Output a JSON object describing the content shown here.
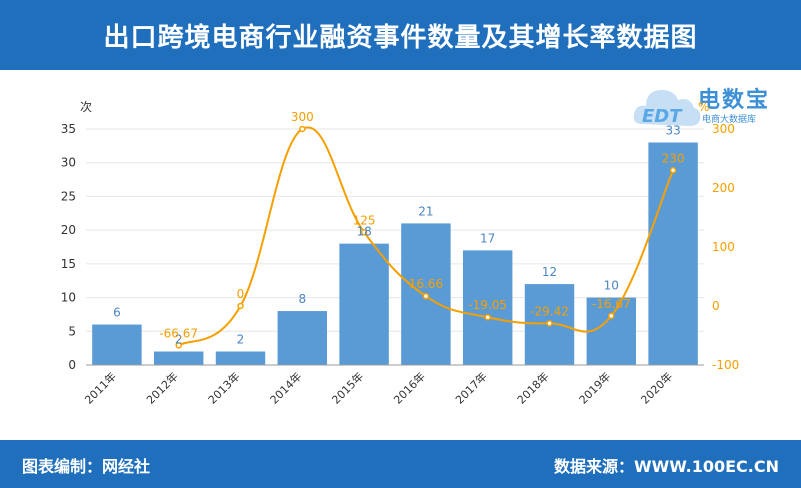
{
  "header": {
    "title": "出口跨境电商行业融资事件数量及其增长率数据图"
  },
  "footer": {
    "left": "图表编制：网经社",
    "right": "数据来源：WWW.100EC.CN"
  },
  "logo": {
    "main": "电数宝",
    "sub": "电商大数据库",
    "badge": "EDT",
    "icon": "cloud-logo-icon"
  },
  "colors": {
    "header": "#1f6fbd",
    "bar": "#5b9bd5",
    "line": "#f5a000",
    "barLabel": "#4a86c5"
  },
  "chart_data": {
    "type": "bar",
    "categories": [
      "2011年",
      "2012年",
      "2013年",
      "2014年",
      "2015年",
      "2016年",
      "2017年",
      "2018年",
      "2019年",
      "2020年"
    ],
    "series": [
      {
        "type": "bar",
        "axis": "left",
        "values": [
          6,
          2,
          2,
          8,
          18,
          21,
          17,
          12,
          10,
          33
        ],
        "labels": [
          "6",
          "2",
          "2",
          "8",
          "18",
          "21",
          "17",
          "12",
          "10",
          "33"
        ]
      },
      {
        "type": "line",
        "axis": "right",
        "values": [
          null,
          -66.67,
          0,
          300,
          125,
          16.66,
          -19.05,
          -29.42,
          -16.67,
          230
        ],
        "labels": [
          "",
          "-66.67",
          "0",
          "300",
          "125",
          "16.66",
          "-19.05",
          "-29.42",
          "-16.67",
          "230"
        ]
      }
    ],
    "yleft": {
      "label": "次",
      "min": 0,
      "max": 35,
      "ticks": [
        "0",
        "5",
        "10",
        "15",
        "20",
        "25",
        "30",
        "35"
      ]
    },
    "yright": {
      "label": "%",
      "min": -100,
      "max": 300,
      "ticks": [
        "-100",
        "0",
        "100",
        "200",
        "300"
      ]
    },
    "grid": true,
    "legend": "none"
  }
}
